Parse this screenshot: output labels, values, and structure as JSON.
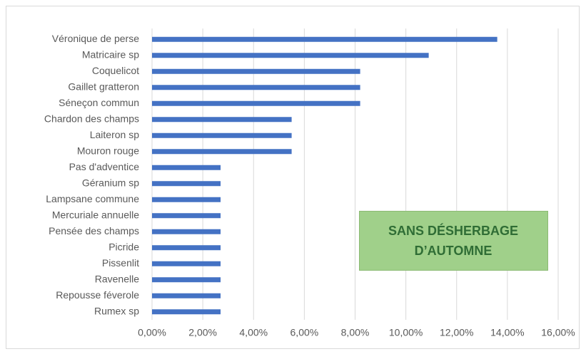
{
  "chart_data": {
    "type": "bar",
    "orientation": "horizontal",
    "categories": [
      "Véronique de perse",
      "Matricaire sp",
      "Coquelicot",
      "Gaillet gratteron",
      "Séneçon commun",
      "Chardon des champs",
      "Laiteron sp",
      "Mouron rouge",
      "Pas d'adventice",
      "Géranium sp",
      "Lampsane commune",
      "Mercuriale annuelle",
      "Pensée des champs",
      "Picride",
      "Pissenlit",
      "Ravenelle",
      "Repousse féverole",
      "Rumex sp"
    ],
    "values": [
      13.6,
      10.9,
      8.2,
      8.2,
      8.2,
      5.5,
      5.5,
      5.5,
      2.7,
      2.7,
      2.7,
      2.7,
      2.7,
      2.7,
      2.7,
      2.7,
      2.7,
      2.7
    ],
    "color": "#4472c4",
    "xlim": [
      0,
      16
    ],
    "xticks": [
      {
        "value": 0,
        "label": "0,00%"
      },
      {
        "value": 2,
        "label": "2,00%"
      },
      {
        "value": 4,
        "label": "4,00%"
      },
      {
        "value": 6,
        "label": "6,00%"
      },
      {
        "value": 8,
        "label": "8,00%"
      },
      {
        "value": 10,
        "label": "10,00%"
      },
      {
        "value": 12,
        "label": "12,00%"
      },
      {
        "value": 14,
        "label": "14,00%"
      },
      {
        "value": 16,
        "label": "16,00%"
      }
    ],
    "grid": true,
    "annotation": [
      "SANS DÉSHERBAGE",
      "D’AUTOMNE"
    ]
  }
}
